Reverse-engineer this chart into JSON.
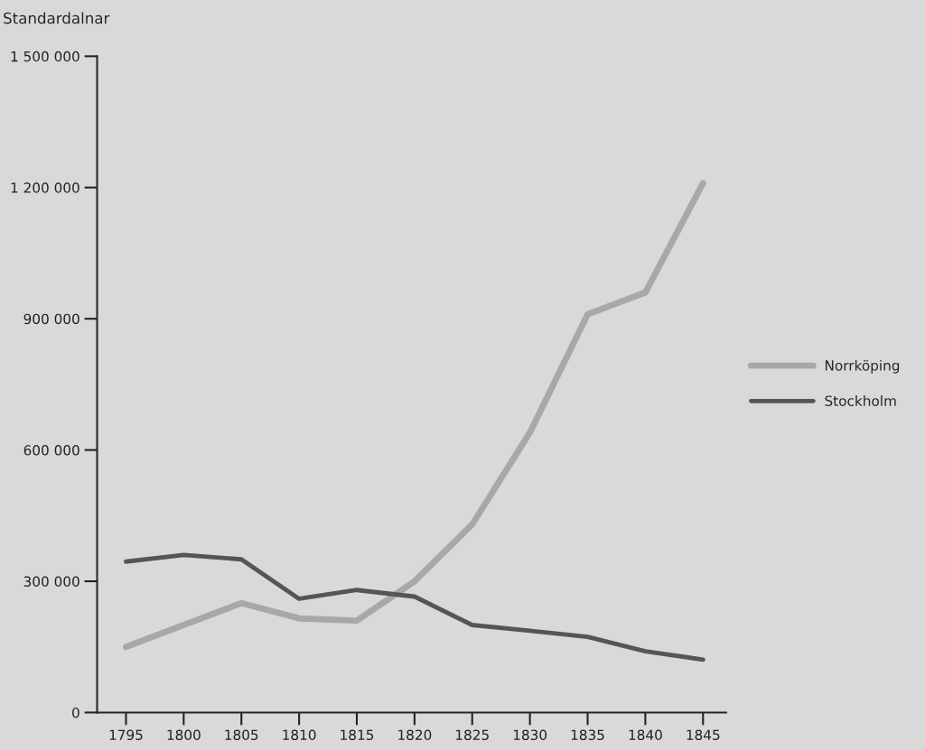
{
  "chart_data": {
    "type": "line",
    "ylabel": "Standardalnar",
    "x": [
      1795,
      1800,
      1805,
      1810,
      1815,
      1820,
      1825,
      1830,
      1835,
      1840,
      1845
    ],
    "series": [
      {
        "name": "Norrköping",
        "color": "#a8a8a8",
        "values": [
          150000,
          200000,
          250000,
          215000,
          210000,
          300000,
          430000,
          640000,
          910000,
          960000,
          1210000
        ]
      },
      {
        "name": "Stockholm",
        "color": "#555555",
        "values": [
          345000,
          360000,
          350000,
          260000,
          280000,
          265000,
          200000,
          187000,
          173000,
          140000,
          121000
        ]
      }
    ],
    "xlim": [
      1792.5,
      1847
    ],
    "xticks": [
      1795,
      1800,
      1805,
      1810,
      1815,
      1820,
      1825,
      1830,
      1835,
      1840,
      1845
    ],
    "ylim": [
      0,
      1500000
    ],
    "yticks": [
      {
        "value": 0,
        "label": "0"
      },
      {
        "value": 300000,
        "label": "300 000"
      },
      {
        "value": 600000,
        "label": "600 000"
      },
      {
        "value": 900000,
        "label": "900 000"
      },
      {
        "value": 1200000,
        "label": "1 200 000"
      },
      {
        "value": 1500000,
        "label": "1 500 000"
      }
    ],
    "grid": false,
    "legend": "right",
    "marker": "none",
    "line_style": "solid"
  }
}
